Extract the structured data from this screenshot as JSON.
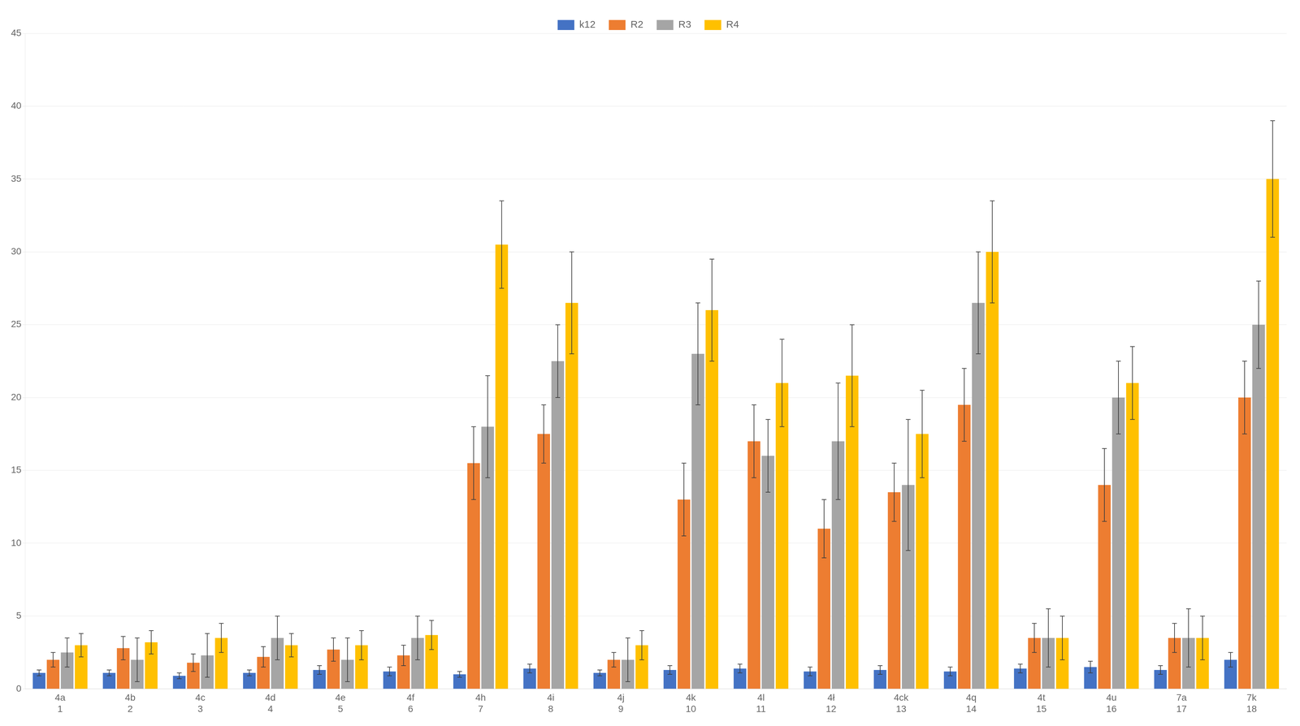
{
  "chart_data": {
    "type": "bar",
    "categories": [
      [
        "4a",
        "1"
      ],
      [
        "4b",
        "2"
      ],
      [
        "4c",
        "3"
      ],
      [
        "4d",
        "4"
      ],
      [
        "4e",
        "5"
      ],
      [
        "4f",
        "6"
      ],
      [
        "4h",
        "7"
      ],
      [
        "4i",
        "8"
      ],
      [
        "4j",
        "9"
      ],
      [
        "4k",
        "10"
      ],
      [
        "4l",
        "11"
      ],
      [
        "4ł",
        "12"
      ],
      [
        "4ck",
        "13"
      ],
      [
        "4q",
        "14"
      ],
      [
        "4t",
        "15"
      ],
      [
        "4u",
        "16"
      ],
      [
        "7a",
        "17"
      ],
      [
        "7k",
        "18"
      ]
    ],
    "series": [
      {
        "name": "k12",
        "color": "#4472C4",
        "values": [
          1.1,
          1.1,
          0.9,
          1.1,
          1.3,
          1.2,
          1.0,
          1.4,
          1.1,
          1.3,
          1.4,
          1.2,
          1.3,
          1.2,
          1.4,
          1.5,
          1.3,
          2.0
        ],
        "errors": [
          0.2,
          0.2,
          0.2,
          0.2,
          0.3,
          0.3,
          0.2,
          0.3,
          0.2,
          0.3,
          0.3,
          0.3,
          0.3,
          0.3,
          0.3,
          0.4,
          0.3,
          0.5
        ]
      },
      {
        "name": "R2",
        "color": "#ED7D31",
        "values": [
          2.0,
          2.8,
          1.8,
          2.2,
          2.7,
          2.3,
          15.5,
          17.5,
          2.0,
          13.0,
          17.0,
          11.0,
          13.5,
          19.5,
          3.5,
          14.0,
          3.5,
          20.0
        ],
        "errors": [
          0.5,
          0.8,
          0.6,
          0.7,
          0.8,
          0.7,
          2.5,
          2.0,
          0.5,
          2.5,
          2.5,
          2.0,
          2.0,
          2.5,
          1.0,
          2.5,
          1.0,
          2.5
        ]
      },
      {
        "name": "R3",
        "color": "#A5A5A5",
        "values": [
          2.5,
          2.0,
          2.3,
          3.5,
          2.0,
          3.5,
          18.0,
          22.5,
          2.0,
          23.0,
          16.0,
          17.0,
          14.0,
          26.5,
          3.5,
          20.0,
          3.5,
          25.0
        ],
        "errors": [
          1.0,
          1.5,
          1.5,
          1.5,
          1.5,
          1.5,
          3.5,
          2.5,
          1.5,
          3.5,
          2.5,
          4.0,
          4.5,
          3.5,
          2.0,
          2.5,
          2.0,
          3.0
        ]
      },
      {
        "name": "R4",
        "color": "#FFC000",
        "values": [
          3.0,
          3.2,
          3.5,
          3.0,
          3.0,
          3.7,
          30.5,
          26.5,
          3.0,
          26.0,
          21.0,
          21.5,
          17.5,
          30.0,
          3.5,
          21.0,
          3.5,
          35.0
        ],
        "errors": [
          0.8,
          0.8,
          1.0,
          0.8,
          1.0,
          1.0,
          3.0,
          3.5,
          1.0,
          3.5,
          3.0,
          3.5,
          3.0,
          3.5,
          1.5,
          2.5,
          1.5,
          4.0
        ]
      }
    ],
    "ylim": [
      0,
      45
    ],
    "yticks": [
      0,
      5,
      10,
      15,
      20,
      25,
      30,
      35,
      40,
      45
    ],
    "grid": true,
    "legend": "top"
  }
}
